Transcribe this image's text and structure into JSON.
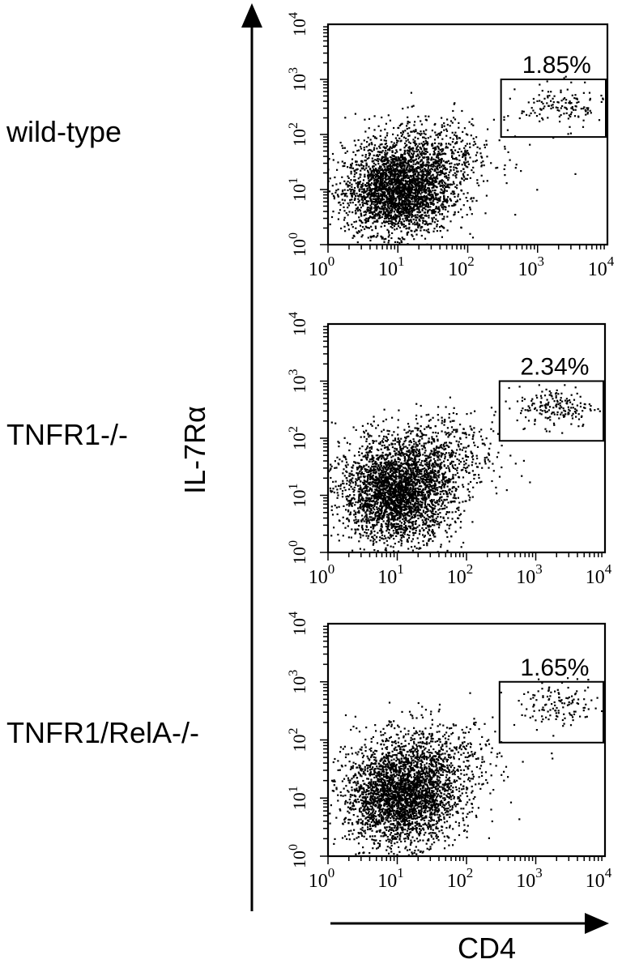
{
  "chart_data": [
    {
      "type": "scatter",
      "sample_label": "wild-type",
      "gate_percent": "1.85%",
      "gate": {
        "x": [
          300,
          10000
        ],
        "y": [
          90,
          1000
        ]
      },
      "xlim": [
        1,
        10000
      ],
      "ylim": [
        1,
        10000
      ],
      "x_scale": "log",
      "y_scale": "log",
      "x_ticks": [
        1,
        10,
        100,
        1000,
        10000
      ],
      "y_ticks": [
        1,
        10,
        100,
        1000,
        10000
      ],
      "x_tick_labels": [
        "10^0",
        "10^1",
        "10^2",
        "10^3",
        "10^4"
      ],
      "y_tick_labels": [
        "10^0",
        "10^1",
        "10^2",
        "10^3",
        "10^4"
      ],
      "populations": [
        {
          "cx": 1.0,
          "cy": 0.95,
          "sx": 0.38,
          "sy": 0.38,
          "n": 2600
        },
        {
          "cx": 1.4,
          "cy": 1.6,
          "sx": 0.5,
          "sy": 0.35,
          "n": 700
        },
        {
          "cx": 3.35,
          "cy": 2.5,
          "sx": 0.3,
          "sy": 0.2,
          "n": 140
        }
      ]
    },
    {
      "type": "scatter",
      "sample_label": "TNFR1-/-",
      "gate_percent": "2.34%",
      "gate": {
        "x": [
          300,
          10000
        ],
        "y": [
          90,
          1000
        ]
      },
      "xlim": [
        1,
        10000
      ],
      "ylim": [
        1,
        10000
      ],
      "x_scale": "log",
      "y_scale": "log",
      "x_ticks": [
        1,
        10,
        100,
        1000,
        10000
      ],
      "y_ticks": [
        1,
        10,
        100,
        1000,
        10000
      ],
      "x_tick_labels": [
        "10^0",
        "10^1",
        "10^2",
        "10^3",
        "10^4"
      ],
      "y_tick_labels": [
        "10^0",
        "10^1",
        "10^2",
        "10^3",
        "10^4"
      ],
      "populations": [
        {
          "cx": 1.0,
          "cy": 1.0,
          "sx": 0.4,
          "sy": 0.4,
          "n": 2700
        },
        {
          "cx": 1.4,
          "cy": 1.7,
          "sx": 0.5,
          "sy": 0.35,
          "n": 700
        },
        {
          "cx": 3.3,
          "cy": 2.55,
          "sx": 0.28,
          "sy": 0.18,
          "n": 180
        }
      ]
    },
    {
      "type": "scatter",
      "sample_label": "TNFR1/RelA-/-",
      "gate_percent": "1.65%",
      "gate": {
        "x": [
          300,
          10000
        ],
        "y": [
          90,
          1000
        ]
      },
      "xlim": [
        1,
        10000
      ],
      "ylim": [
        1,
        10000
      ],
      "x_scale": "log",
      "y_scale": "log",
      "x_ticks": [
        1,
        10,
        100,
        1000,
        10000
      ],
      "y_ticks": [
        1,
        10,
        100,
        1000,
        10000
      ],
      "x_tick_labels": [
        "10^0",
        "10^1",
        "10^2",
        "10^3",
        "10^4"
      ],
      "y_tick_labels": [
        "10^0",
        "10^1",
        "10^2",
        "10^3",
        "10^4"
      ],
      "populations": [
        {
          "cx": 1.05,
          "cy": 1.0,
          "sx": 0.4,
          "sy": 0.4,
          "n": 2600
        },
        {
          "cx": 1.45,
          "cy": 1.65,
          "sx": 0.5,
          "sy": 0.35,
          "n": 700
        },
        {
          "cx": 3.35,
          "cy": 2.6,
          "sx": 0.28,
          "sy": 0.18,
          "n": 130
        }
      ]
    }
  ],
  "y_axis_label": "IL-7Rα",
  "x_axis_label": "CD4"
}
